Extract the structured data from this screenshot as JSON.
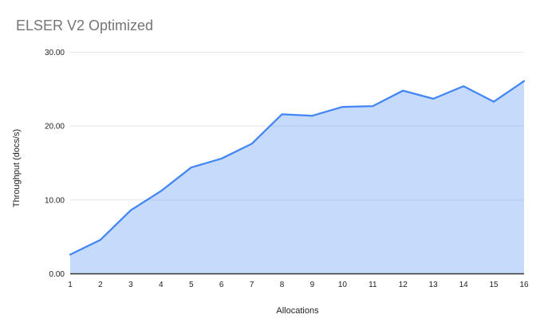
{
  "chart_data": {
    "type": "area",
    "title": "ELSER V2 Optimized",
    "xlabel": "Allocations",
    "ylabel": "Throughput (docs/s)",
    "categories": [
      "1",
      "2",
      "3",
      "4",
      "5",
      "6",
      "7",
      "8",
      "9",
      "10",
      "11",
      "12",
      "13",
      "14",
      "15",
      "16"
    ],
    "series": [
      {
        "name": "Throughput",
        "values": [
          2.6,
          4.6,
          8.6,
          11.2,
          14.4,
          15.6,
          17.6,
          21.6,
          21.4,
          22.6,
          22.7,
          24.8,
          23.7,
          25.4,
          23.3,
          26.1
        ]
      }
    ],
    "ylim": [
      0,
      30
    ],
    "yticks": [
      {
        "value": 0,
        "label": "0.00"
      },
      {
        "value": 10,
        "label": "10.00"
      },
      {
        "value": 20,
        "label": "20.00"
      },
      {
        "value": 30,
        "label": "30.00"
      }
    ],
    "grid": "horizontal-only",
    "legend": "none",
    "colors": {
      "line": "#4285f4",
      "fill": "#4285f4",
      "fill_opacity": 0.3,
      "grid": "#e3e3e3",
      "axis": "#333333",
      "tick": "#1f1f1f",
      "title": "#757575",
      "background": "#ffffff"
    }
  }
}
